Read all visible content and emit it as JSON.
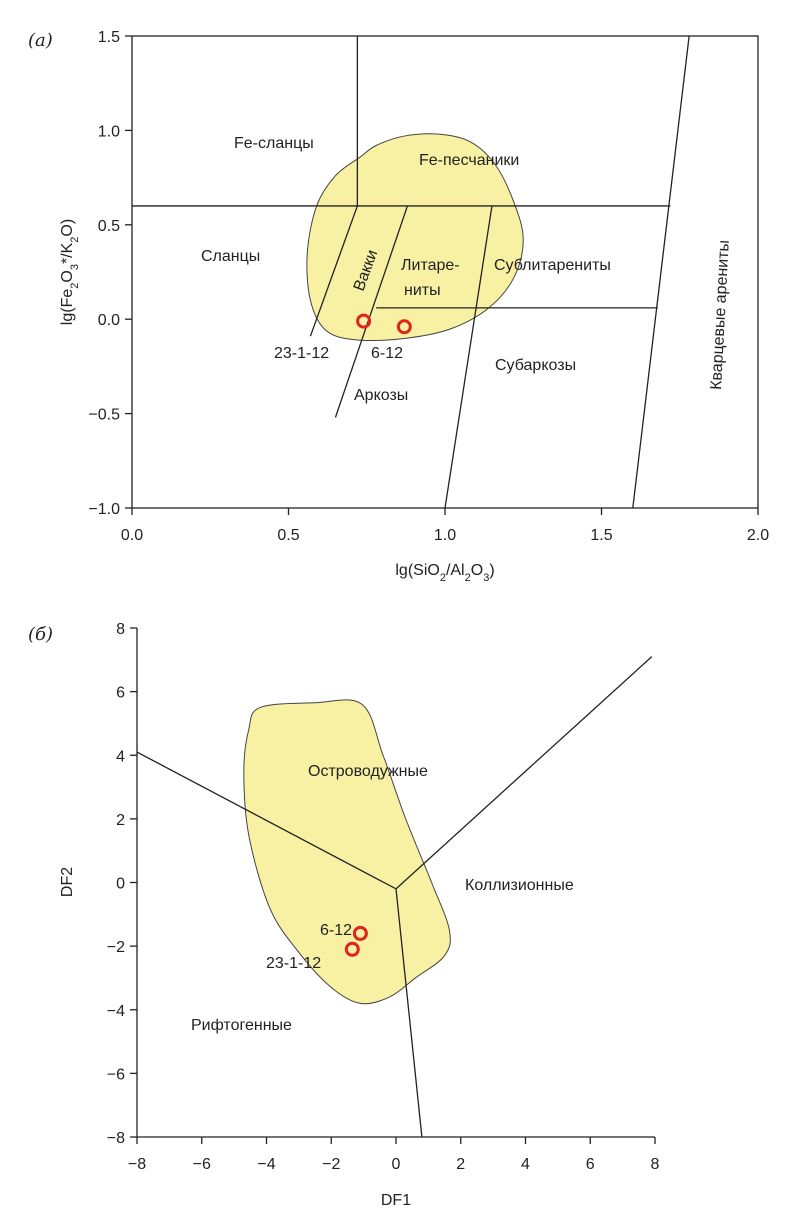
{
  "chart_data": [
    {
      "type": "scatter",
      "panel_label": "(а)",
      "xlabel": "lg(SiO2/Al2O3)",
      "ylabel": "lg(Fe2O3*/K2O)",
      "xlim": [
        0,
        2.0
      ],
      "ylim": [
        -1.0,
        1.5
      ],
      "x_ticks": [
        "0.0",
        "0.5",
        "1.0",
        "1.5",
        "2.0"
      ],
      "y_ticks": [
        "1.5",
        "1.0",
        "0.5",
        "0.0",
        "−0.5",
        "−1.0"
      ],
      "regions": [
        "Fe-сланцы",
        "Fe-песчаники",
        "Сланцы",
        "Вакки",
        "Литаре-",
        "ниты",
        "Сублитарениты",
        "Аркозы",
        "Субаркозы",
        "Кварцевые арениты"
      ],
      "boundaries": [
        [
          [
            0.72,
            1.5
          ],
          [
            0.72,
            0.6
          ]
        ],
        [
          [
            0.0,
            0.6
          ],
          [
            1.72,
            0.6
          ]
        ],
        [
          [
            0.72,
            0.6
          ],
          [
            0.57,
            -0.09
          ]
        ],
        [
          [
            0.88,
            0.6
          ],
          [
            0.65,
            -0.52
          ]
        ],
        [
          [
            1.15,
            0.6
          ],
          [
            1.0,
            -1.0
          ]
        ],
        [
          [
            0.78,
            0.06
          ],
          [
            1.68,
            0.06
          ]
        ],
        [
          [
            1.78,
            1.5
          ],
          [
            1.6,
            -1.0
          ]
        ]
      ],
      "field": [
        [
          0.73,
          0.86
        ],
        [
          0.78,
          0.92
        ],
        [
          0.87,
          0.97
        ],
        [
          0.98,
          0.98
        ],
        [
          1.08,
          0.94
        ],
        [
          1.16,
          0.82
        ],
        [
          1.22,
          0.62
        ],
        [
          1.25,
          0.42
        ],
        [
          1.22,
          0.22
        ],
        [
          1.14,
          0.06
        ],
        [
          1.02,
          -0.05
        ],
        [
          0.88,
          -0.1
        ],
        [
          0.72,
          -0.11
        ],
        [
          0.62,
          -0.06
        ],
        [
          0.57,
          0.1
        ],
        [
          0.56,
          0.35
        ],
        [
          0.59,
          0.6
        ],
        [
          0.65,
          0.76
        ]
      ],
      "points": [
        {
          "label": "23-1-12",
          "x": 0.74,
          "y": -0.01
        },
        {
          "label": "6-12",
          "x": 0.87,
          "y": -0.04
        }
      ]
    },
    {
      "type": "scatter",
      "panel_label": "(б)",
      "xlabel": "DF1",
      "ylabel": "DF2",
      "xlim": [
        -8,
        8
      ],
      "ylim": [
        -8,
        8
      ],
      "x_ticks": [
        "−8",
        "−6",
        "−4",
        "−2",
        "0",
        "2",
        "4",
        "6",
        "8"
      ],
      "y_ticks": [
        "8",
        "6",
        "4",
        "2",
        "0",
        "−2",
        "−4",
        "−6",
        "−8"
      ],
      "regions": [
        "Островодужные",
        "Коллизионные",
        "Рифтогенные"
      ],
      "boundaries": [
        [
          [
            -8,
            4.1
          ],
          [
            0,
            -0.2
          ]
        ],
        [
          [
            0,
            -0.2
          ],
          [
            7.9,
            7.1
          ]
        ],
        [
          [
            0,
            -0.2
          ],
          [
            0.8,
            -8
          ]
        ]
      ],
      "field": [
        [
          -4.2,
          5.5
        ],
        [
          -2.5,
          5.65
        ],
        [
          -1.05,
          5.6
        ],
        [
          -0.4,
          4.0
        ],
        [
          0.3,
          2.0
        ],
        [
          1.1,
          0.0
        ],
        [
          1.65,
          -1.5
        ],
        [
          1.5,
          -2.3
        ],
        [
          0.6,
          -3.0
        ],
        [
          -0.2,
          -3.6
        ],
        [
          -1.1,
          -3.8
        ],
        [
          -2.0,
          -3.3
        ],
        [
          -3.0,
          -2.2
        ],
        [
          -3.9,
          -0.8
        ],
        [
          -4.55,
          1.5
        ],
        [
          -4.7,
          3.5
        ],
        [
          -4.55,
          4.8
        ]
      ],
      "points": [
        {
          "label": "6-12",
          "x": -1.1,
          "y": -1.6
        },
        {
          "label": "23-1-12",
          "x": -1.35,
          "y": -2.1
        }
      ]
    }
  ]
}
